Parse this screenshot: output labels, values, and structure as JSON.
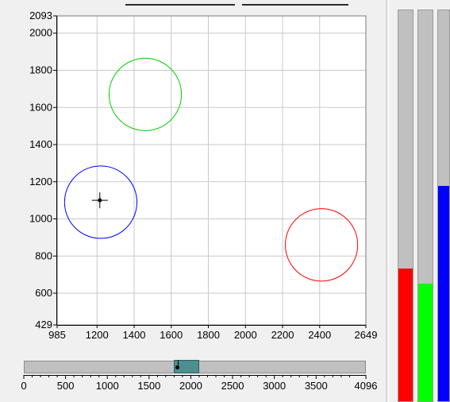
{
  "chart_data": {
    "type": "scatter",
    "title": "",
    "xlabel": "",
    "ylabel": "",
    "xlim": [
      985,
      2649
    ],
    "ylim": [
      429,
      2093
    ],
    "x_ticks": [
      985,
      1200,
      1400,
      1600,
      1800,
      2000,
      2200,
      2400,
      2649
    ],
    "y_ticks": [
      429,
      600,
      800,
      1000,
      1200,
      1400,
      1600,
      1800,
      2000,
      2093
    ],
    "grid": true,
    "circles": [
      {
        "color": "#00d000",
        "cx": 1460,
        "cy": 1670,
        "r": 195
      },
      {
        "color": "#0000ff",
        "cx": 1220,
        "cy": 1090,
        "r": 195
      },
      {
        "color": "#ff0000",
        "cx": 2410,
        "cy": 860,
        "r": 195
      }
    ],
    "cursor": {
      "x": 1215,
      "y": 1100
    }
  },
  "slider": {
    "min": 0,
    "max": 4096,
    "ticks": [
      0,
      500,
      1000,
      1500,
      2000,
      2500,
      3000,
      3500,
      4096
    ],
    "range": [
      1800,
      2100
    ],
    "value": 1840,
    "thumb_color": "#4d8e8e"
  },
  "level_bars": [
    {
      "color": "#ff0000",
      "level": 0.34
    },
    {
      "color": "#00ff00",
      "level": 0.3
    },
    {
      "color": "#0000ff",
      "level": 0.55
    }
  ]
}
